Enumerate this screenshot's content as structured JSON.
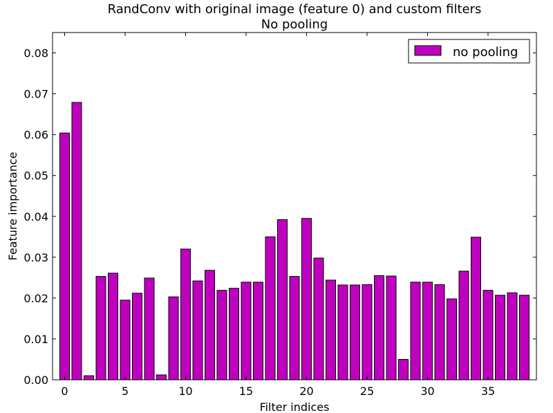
{
  "chart_data": {
    "type": "bar",
    "title": "RandConv with original image (feature 0) and custom filters",
    "subtitle": "No pooling",
    "xlabel": "Filter indices",
    "ylabel": "Feature importance",
    "xlim": [
      -1,
      39
    ],
    "ylim": [
      0,
      0.085
    ],
    "xticks": [
      0,
      5,
      10,
      15,
      20,
      25,
      30,
      35
    ],
    "yticks": [
      "0.00",
      "0.01",
      "0.02",
      "0.03",
      "0.04",
      "0.05",
      "0.06",
      "0.07",
      "0.08"
    ],
    "grid": false,
    "legend_position": "top-right",
    "series": [
      {
        "name": "no pooling",
        "color": "#bf00bf",
        "x": [
          0,
          1,
          2,
          3,
          4,
          5,
          6,
          7,
          8,
          9,
          10,
          11,
          12,
          13,
          14,
          15,
          16,
          17,
          18,
          19,
          20,
          21,
          22,
          23,
          24,
          25,
          26,
          27,
          28,
          29,
          30,
          31,
          32,
          33,
          34,
          35,
          36,
          37,
          38
        ],
        "values": [
          0.0604,
          0.0679,
          0.001,
          0.0253,
          0.0261,
          0.0195,
          0.0212,
          0.0249,
          0.0012,
          0.0203,
          0.032,
          0.0242,
          0.0268,
          0.0219,
          0.0224,
          0.0239,
          0.0239,
          0.035,
          0.0392,
          0.0253,
          0.0395,
          0.0298,
          0.0244,
          0.0232,
          0.0232,
          0.0233,
          0.0255,
          0.0254,
          0.005,
          0.0239,
          0.0239,
          0.0233,
          0.0198,
          0.0266,
          0.0349,
          0.0219,
          0.0207,
          0.0213,
          0.0207
        ]
      }
    ]
  }
}
